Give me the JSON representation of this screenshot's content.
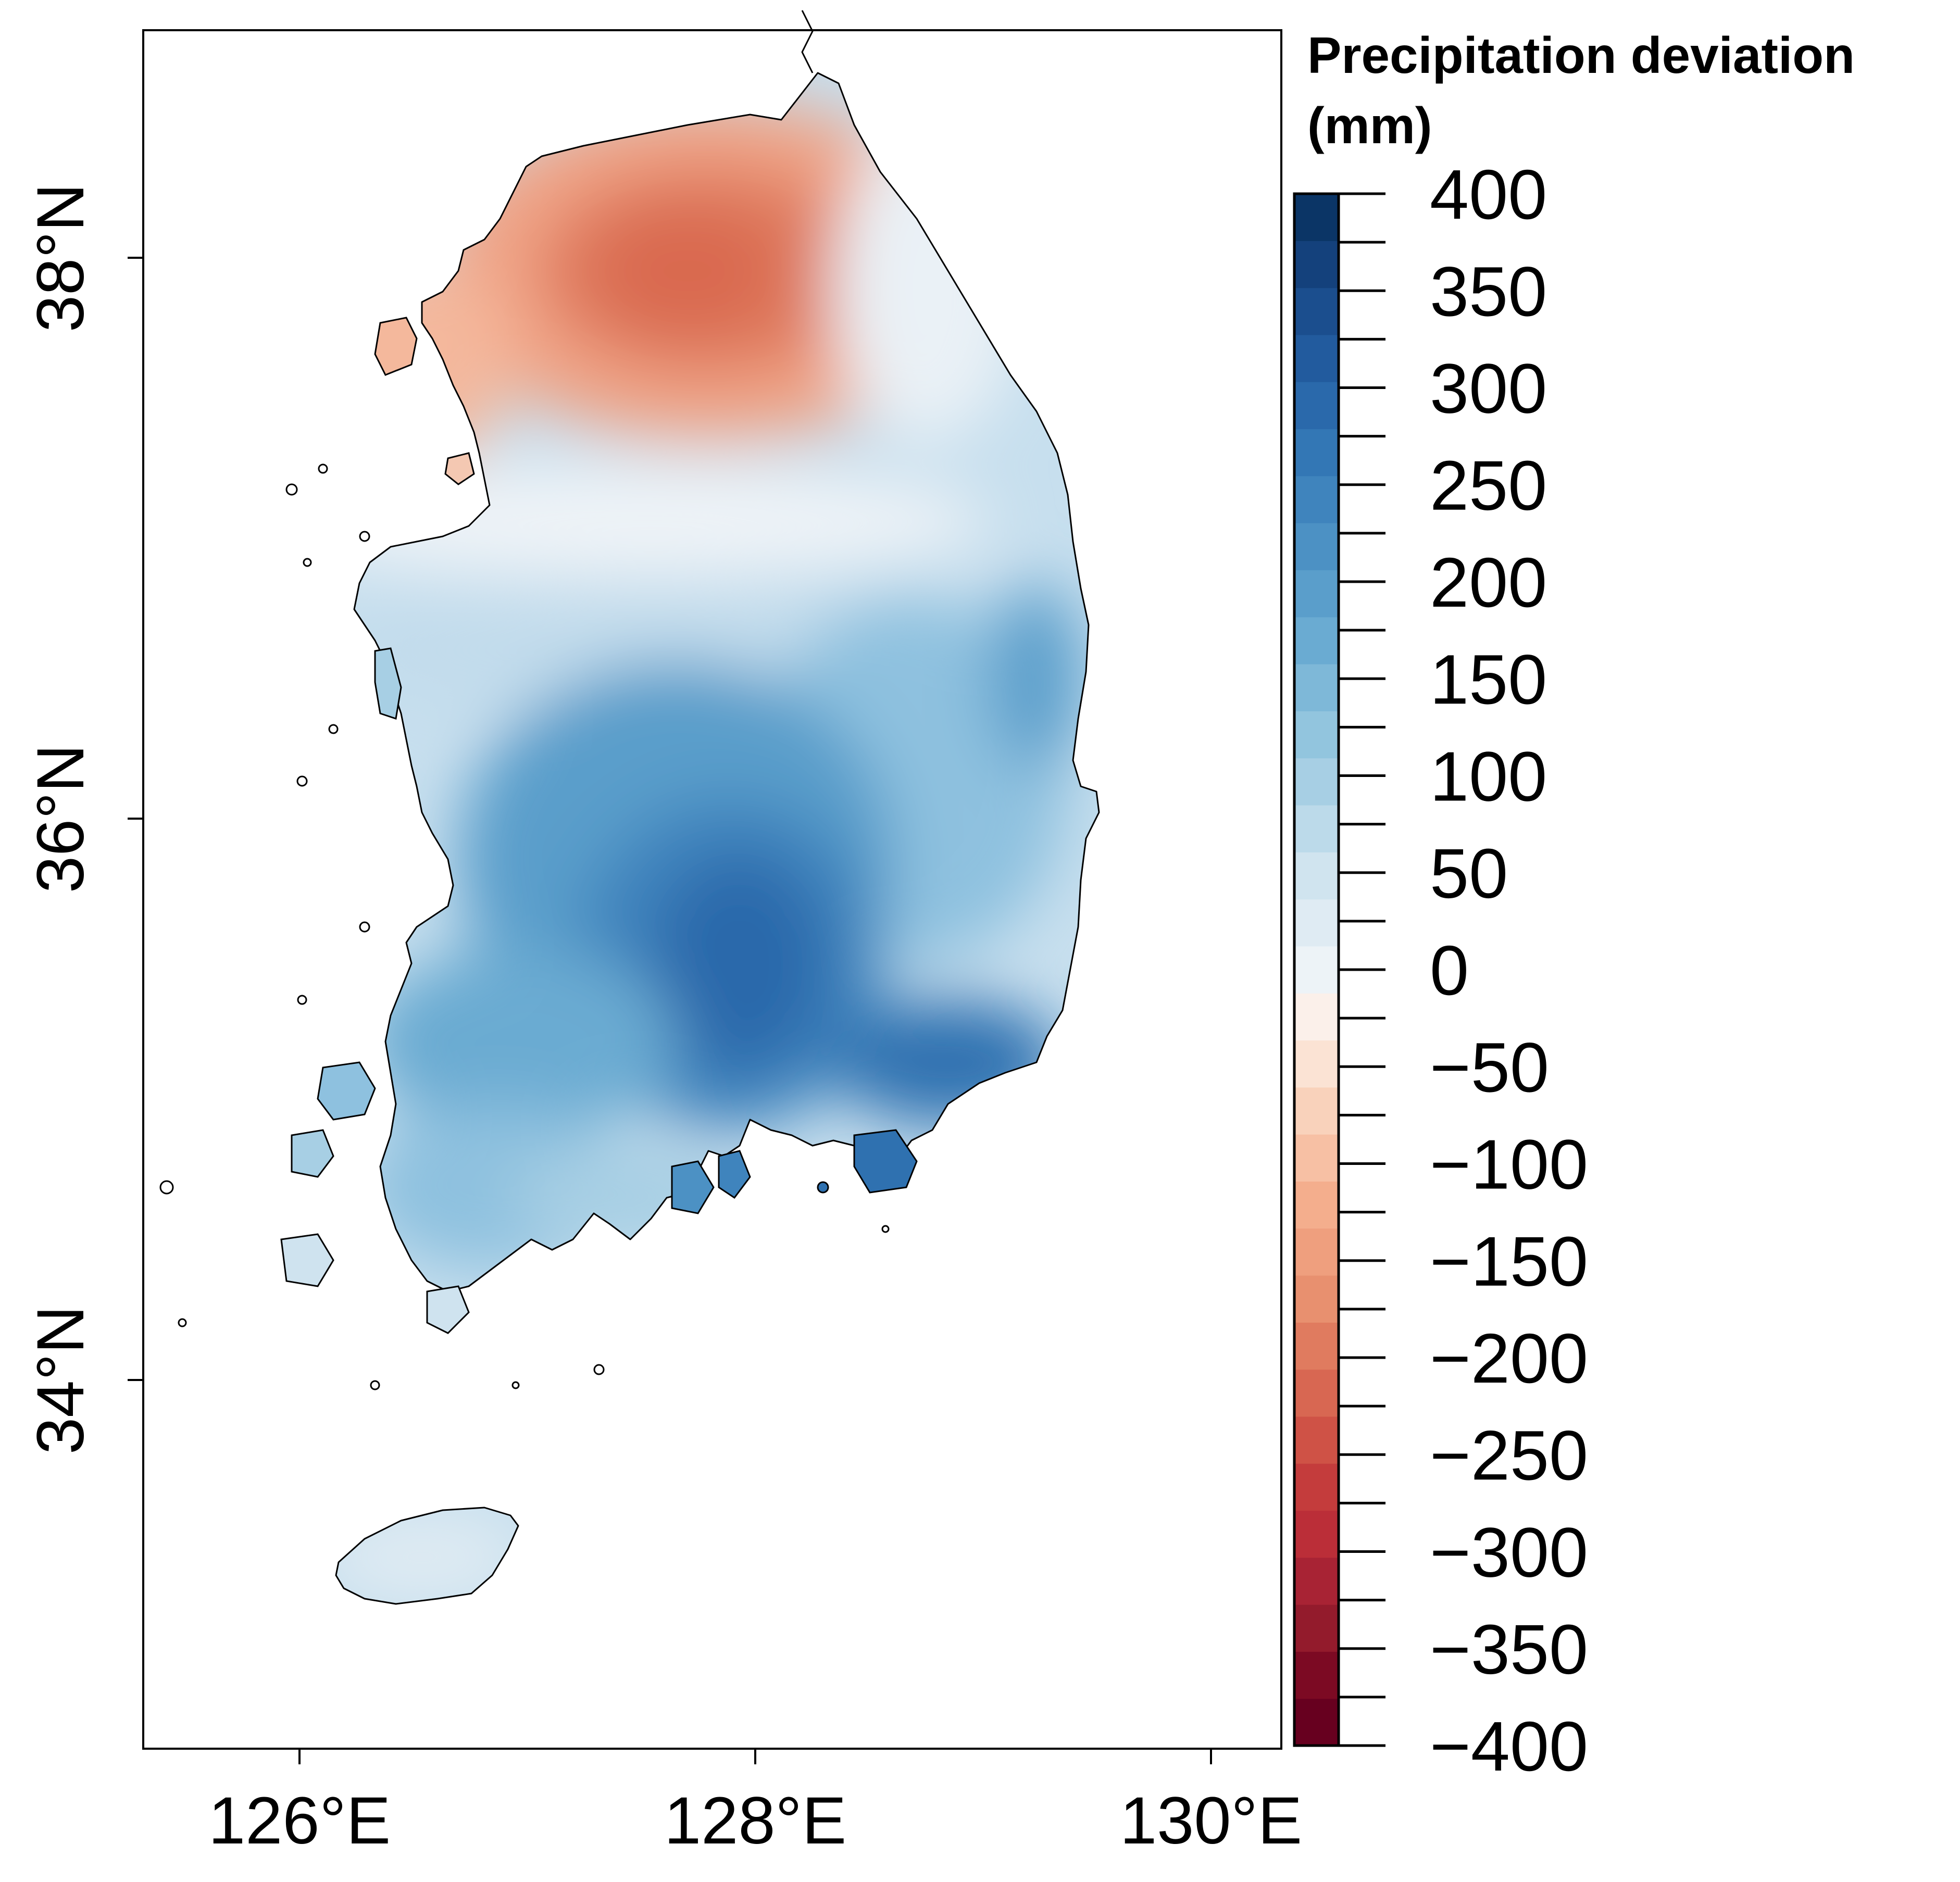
{
  "chart_data": {
    "type": "heatmap",
    "map_type": "filled contour map",
    "region": "South Korea",
    "legend": {
      "title_line1": "Precipitation deviation",
      "title_line2": "(mm)",
      "min": -400,
      "max": 400,
      "step": 25,
      "tick_labels": [
        "400",
        "350",
        "300",
        "250",
        "200",
        "150",
        "100",
        "50",
        "0",
        "−50",
        "−100",
        "−150",
        "−200",
        "−250",
        "−300",
        "−350",
        "−400"
      ],
      "colors_low_to_high": [
        "#67001f",
        "#7c0a23",
        "#931b2c",
        "#a82334",
        "#bb2e38",
        "#c43c3c",
        "#cf5246",
        "#d86752",
        "#e07b5f",
        "#e8906f",
        "#ef9f7e",
        "#f4ae8d",
        "#f7c0a4",
        "#f9d2bb",
        "#fbe3d4",
        "#fbf0ea",
        "#edf3f7",
        "#dfebf3",
        "#d0e4ef",
        "#bcdaea",
        "#a7cfe4",
        "#92c5de",
        "#7eb8d8",
        "#6aabd2",
        "#5a9ecb",
        "#4c91c4",
        "#3f84bd",
        "#3377b5",
        "#2a69ab",
        "#225b9e",
        "#1b4e8e",
        "#14417c",
        "#0b3566"
      ]
    },
    "x_axis": {
      "range": [
        125.35,
        130.3
      ],
      "ticks": [
        126,
        128,
        130
      ],
      "tick_labels": [
        "126°E",
        "128°E",
        "130°E"
      ]
    },
    "y_axis": {
      "range": [
        32.7,
        38.8
      ],
      "ticks": [
        34,
        36,
        38
      ],
      "tick_labels": [
        "34°N",
        "36°N",
        "38°N"
      ]
    },
    "regional_values": [
      {
        "region": "north-central (Gangwon/Gyeonggi north)",
        "deviation_mm": -200
      },
      {
        "region": "northwest coast (Gyeonggi)",
        "deviation_mm": -125
      },
      {
        "region": "northeast coast",
        "deviation_mm": 25
      },
      {
        "region": "central band",
        "deviation_mm": 75
      },
      {
        "region": "east coast (Gyeongbuk)",
        "deviation_mm": 225
      },
      {
        "region": "south-central (Gyeongnam inland)",
        "deviation_mm": 300
      },
      {
        "region": "southwest (Jeolla)",
        "deviation_mm": 175
      },
      {
        "region": "south coast islands",
        "deviation_mm": 250
      },
      {
        "region": "Jeju",
        "deviation_mm": 75
      }
    ]
  }
}
